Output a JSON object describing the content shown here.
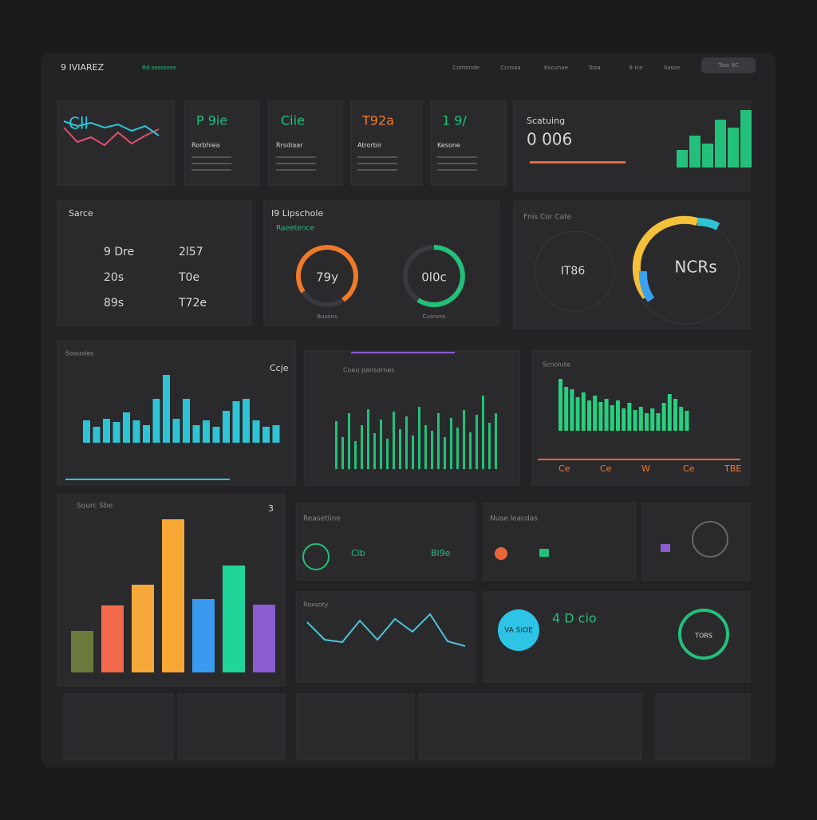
{
  "header": {
    "logo": "9 IVIAREZ",
    "tag": "Rd sesssnes",
    "nav": [
      "Comnnde",
      "Ccnsaa",
      "Kacunae",
      "Tosa",
      "9 Ice",
      "Sasse"
    ],
    "button": "Tosr 9C"
  },
  "stat_cards": [
    {
      "value": "P 9ie",
      "label": "Rorbhiea"
    },
    {
      "value": "Ciie",
      "label": "Rrsdiaar"
    },
    {
      "value": "T92a",
      "label": "Atrorbir"
    },
    {
      "value": "1 9/",
      "label": "Kesone"
    }
  ],
  "mini_line": {
    "title": "Cll",
    "series": [
      {
        "name": "",
        "color": "#e0506a",
        "values": [
          40,
          22,
          28,
          18,
          34,
          20,
          30,
          38
        ]
      },
      {
        "name": "",
        "color": "#2ec4d6",
        "values": [
          48,
          42,
          46,
          40,
          44,
          36,
          42,
          30
        ]
      }
    ]
  },
  "scatuing": {
    "title": "Scatuing",
    "value": "0 006",
    "color": "#22c07a",
    "values": [
      22,
      40,
      30,
      60,
      50,
      72
    ]
  },
  "sarce": {
    "title": "Sarce",
    "rows": [
      [
        "9 Dre",
        "2l57"
      ],
      [
        "20s",
        "T0e"
      ],
      [
        "89s",
        "T72e"
      ]
    ]
  },
  "gauges": {
    "title": "I9 Lipschole",
    "subtitle": "Raeetence",
    "items": [
      {
        "value": "79y",
        "label": "Busons"
      },
      {
        "value": "0l0c",
        "label": "Cusnero"
      }
    ]
  },
  "fnis": {
    "title": "Fnis Cor Cate",
    "left": "IT86",
    "right": "NCRs"
  },
  "bars1": {
    "title": "Soousles",
    "corner": "Ccje",
    "color": "#2ec4d6",
    "values": [
      28,
      20,
      30,
      26,
      38,
      28,
      22,
      55,
      85,
      30,
      55,
      22,
      28,
      20,
      40,
      52,
      55,
      28,
      20,
      22
    ]
  },
  "bars2": {
    "title": "Coeu pansarnes",
    "color": "#22c07a",
    "values": [
      60,
      40,
      70,
      35,
      55,
      75,
      45,
      62,
      38,
      72,
      50,
      66,
      42,
      78,
      55,
      48,
      70,
      40,
      64,
      52,
      74,
      46,
      68,
      92,
      58,
      70
    ]
  },
  "bars3": {
    "title": "Scnolute",
    "color": "#27d07e",
    "values": [
      65,
      55,
      52,
      42,
      48,
      38,
      44,
      36,
      40,
      32,
      38,
      28,
      35,
      26,
      30,
      22,
      28,
      22,
      35,
      46,
      40,
      30,
      25
    ],
    "footer": [
      "Ce",
      "Ce",
      "W",
      "Ce",
      "TBE"
    ]
  },
  "bars4": {
    "title": "Sourc Sbe",
    "corner": "3",
    "colors": [
      "#6b7a3c",
      "#f26a4b",
      "#f5a93a",
      "#f7a733",
      "#3a9af0",
      "#1fd59a",
      "#8a5cd0"
    ],
    "values": [
      52,
      84,
      110,
      192,
      92,
      134,
      85
    ]
  },
  "reasetline": {
    "title": "Reasetline",
    "items": [
      "Clb",
      "Bl9e"
    ]
  },
  "nuse": {
    "title": "Nuse leacdas"
  },
  "line2": {
    "title": "Roxsoty",
    "color": "#4fc3d6",
    "values": [
      30,
      8,
      5,
      32,
      8,
      34,
      18,
      40,
      6,
      0
    ]
  },
  "vasioe": {
    "badge": "VA SIOE",
    "value": "4 D cio",
    "ring": "TORS"
  }
}
